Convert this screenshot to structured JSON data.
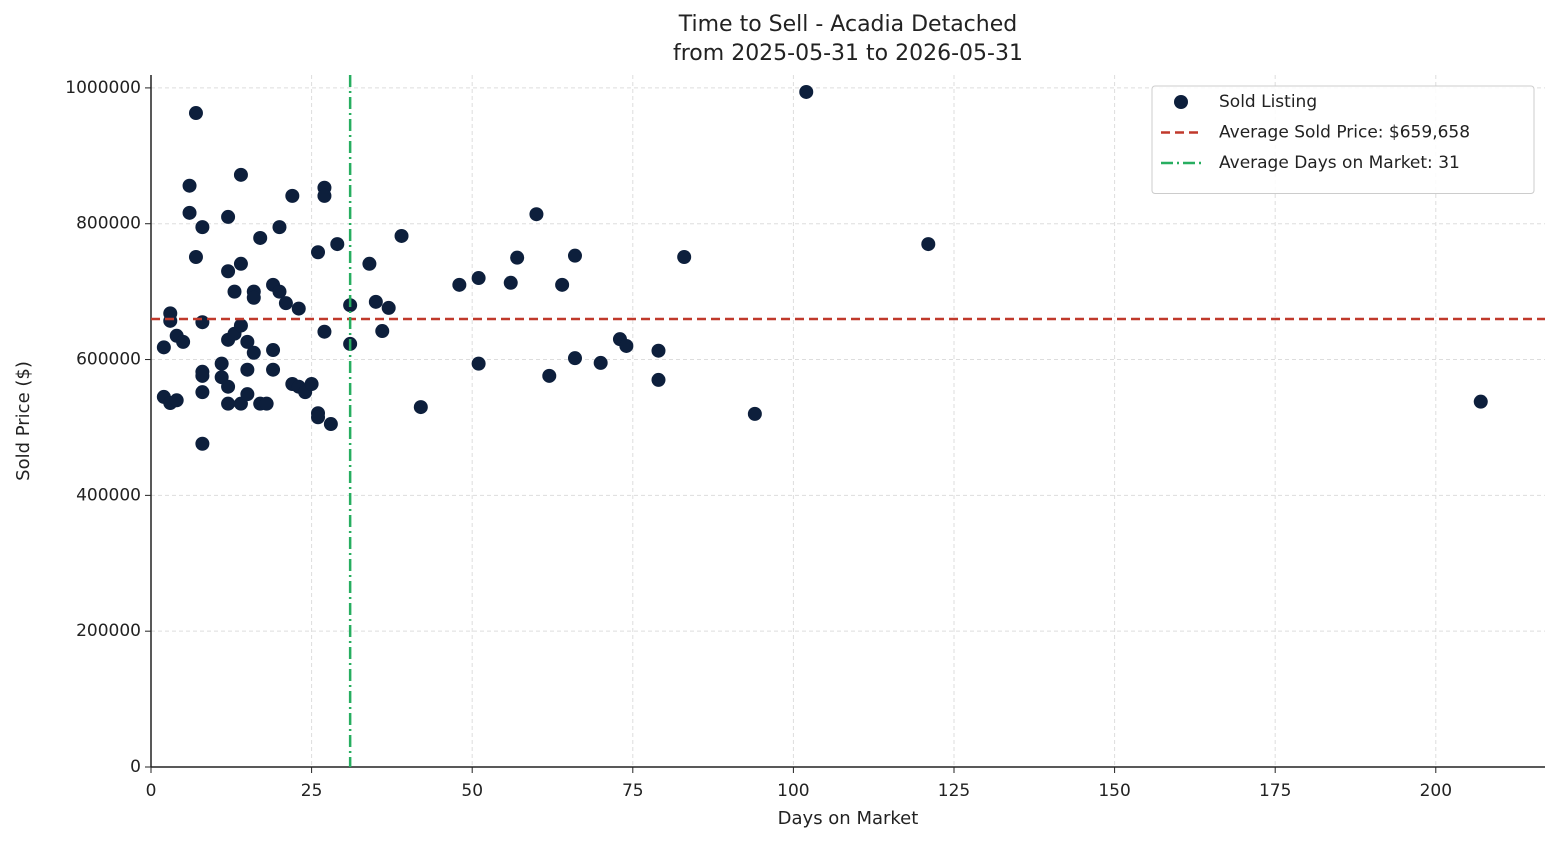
{
  "chart_data": {
    "type": "scatter",
    "title": "Time to Sell - Acadia Detached",
    "subtitle": "from 2025-05-31 to 2026-05-31",
    "x_label": "Days on Market",
    "y_label": "Sold Price ($)",
    "xlim": [
      0,
      217
    ],
    "ylim": [
      0,
      1019000
    ],
    "xticks": [
      0,
      25,
      50,
      75,
      100,
      125,
      150,
      175,
      200
    ],
    "yticks": [
      0,
      200000,
      400000,
      600000,
      800000,
      1000000
    ],
    "grid": true,
    "legend": "upper right",
    "series": [
      {
        "name": "Sold Listing",
        "color": "#0d1f3c",
        "x": [
          2,
          3,
          3,
          2,
          3,
          4,
          4,
          5,
          7,
          6,
          6,
          8,
          7,
          8,
          8,
          8,
          8,
          8,
          11,
          11,
          12,
          12,
          13,
          12,
          13,
          14,
          14,
          14,
          12,
          12,
          14,
          15,
          15,
          15,
          16,
          16,
          16,
          17,
          17,
          18,
          19,
          20,
          20,
          19,
          19,
          21,
          22,
          23,
          22,
          23,
          24,
          25,
          26,
          27,
          27,
          27,
          26,
          26,
          28,
          29,
          31,
          31,
          34,
          35,
          36,
          37,
          39,
          42,
          48,
          51,
          51,
          56,
          57,
          60,
          62,
          64,
          66,
          66,
          70,
          73,
          74,
          79,
          79,
          83,
          94,
          102,
          121,
          207
        ],
        "values": [
          618000,
          668000,
          657000,
          545000,
          536000,
          540000,
          635000,
          626000,
          963000,
          856000,
          816000,
          795000,
          751000,
          655000,
          582000,
          576000,
          552000,
          476000,
          594000,
          574000,
          810000,
          730000,
          700000,
          629000,
          638000,
          650000,
          741000,
          872000,
          560000,
          535000,
          535000,
          626000,
          585000,
          549000,
          700000,
          691000,
          610000,
          779000,
          535000,
          535000,
          710000,
          700000,
          795000,
          614000,
          585000,
          683000,
          841000,
          675000,
          564000,
          560000,
          552000,
          564000,
          758000,
          853000,
          841000,
          641000,
          521000,
          515000,
          505000,
          770000,
          680000,
          623000,
          741000,
          685000,
          642000,
          676000,
          782000,
          530000,
          710000,
          720000,
          594000,
          713000,
          750000,
          814000,
          576000,
          710000,
          753000,
          602000,
          595000,
          630000,
          620000,
          613000,
          570000,
          751000,
          520000,
          994000,
          770000,
          538000
        ]
      }
    ],
    "hlines": [
      {
        "name": "Average Sold Price: $659,658",
        "value": 659658,
        "color": "#c0392b",
        "style": "dashed"
      }
    ],
    "vlines": [
      {
        "name": "Average Days on Market: 31",
        "value": 31,
        "color": "#27ae60",
        "style": "dashdot"
      }
    ]
  }
}
